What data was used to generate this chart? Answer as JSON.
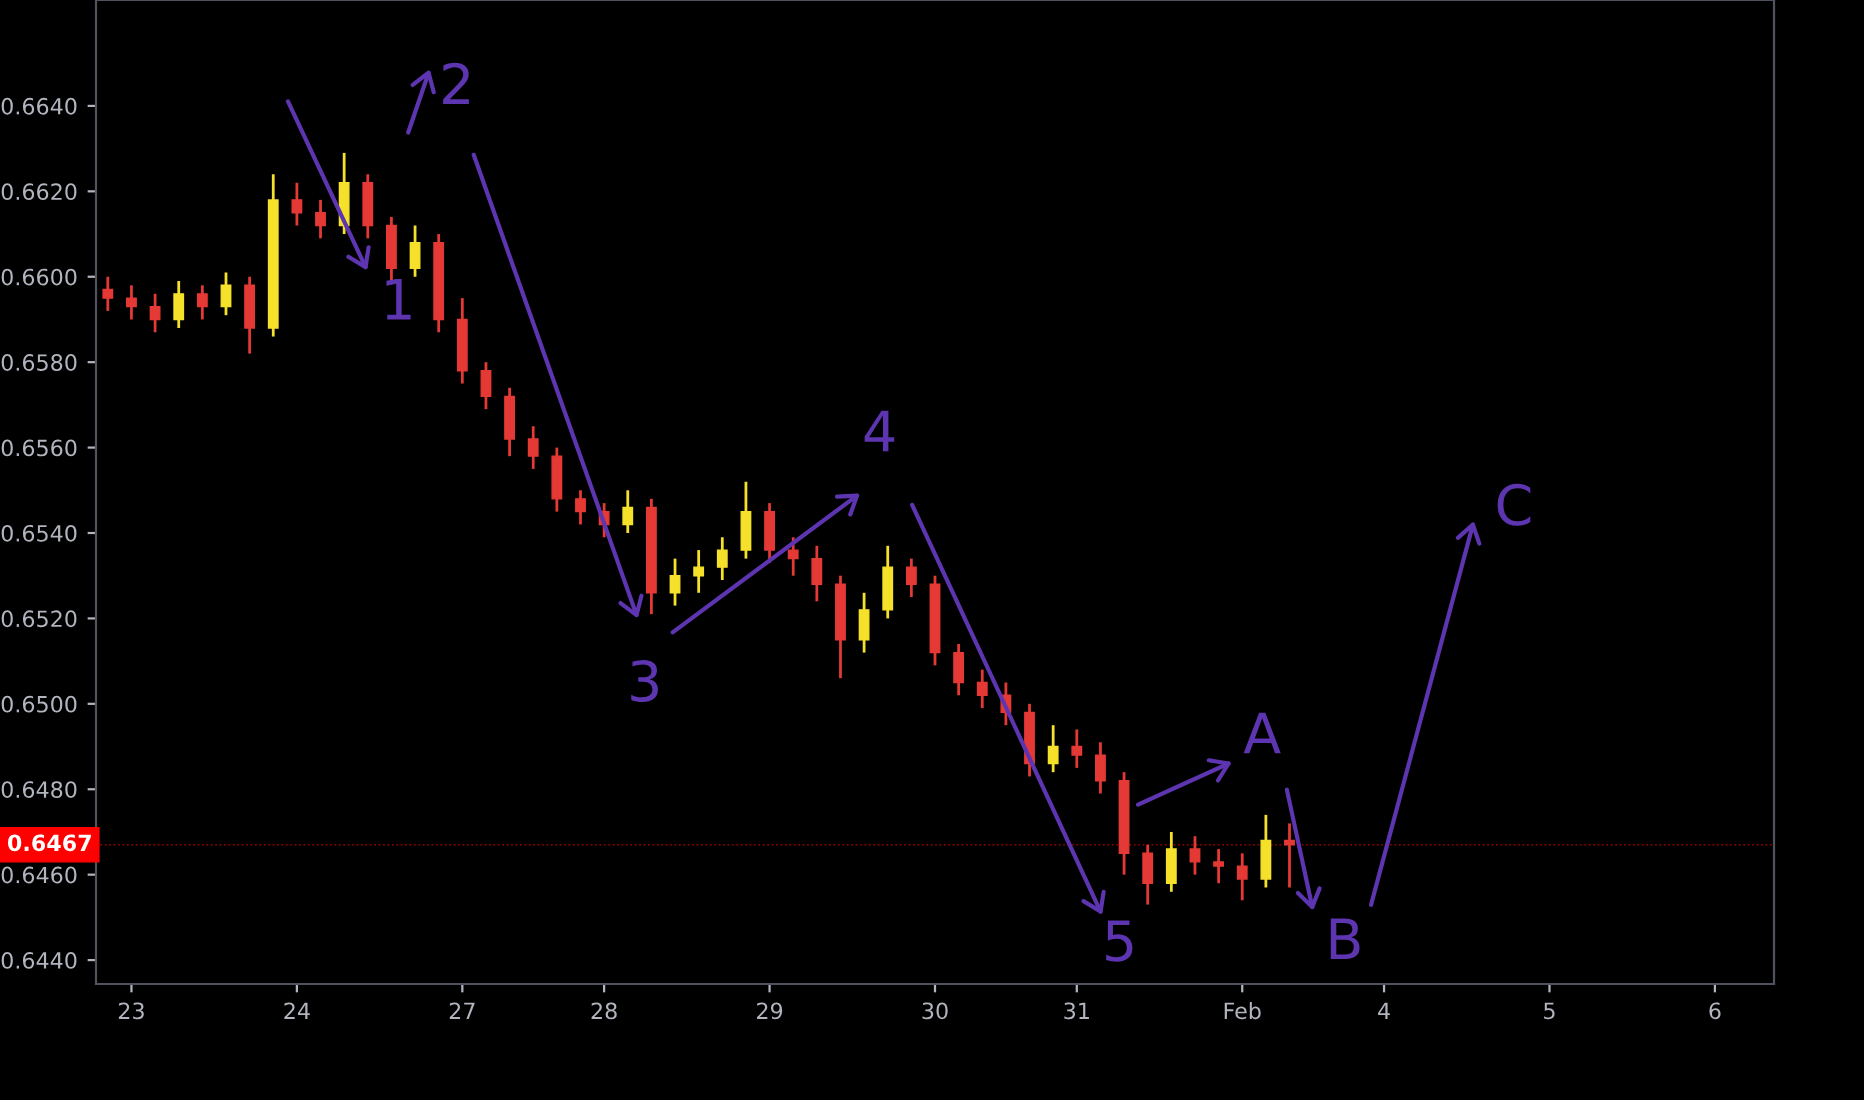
{
  "chart_data": {
    "type": "candlestick",
    "categories": [
      null,
      "23",
      null,
      null,
      null,
      null,
      null,
      null,
      "24",
      null,
      null,
      null,
      null,
      null,
      null,
      "27",
      null,
      null,
      null,
      null,
      null,
      "28",
      null,
      null,
      null,
      null,
      null,
      null,
      "29",
      null,
      null,
      null,
      null,
      null,
      null,
      "30",
      null,
      null,
      null,
      null,
      null,
      "31",
      null,
      null,
      null,
      null,
      null,
      null,
      "Feb",
      null,
      null,
      null,
      null,
      null,
      "4",
      null,
      null,
      null,
      null,
      null,
      null,
      "5",
      null,
      null,
      null,
      null,
      null,
      null,
      "6",
      null,
      null
    ],
    "ohlc": [
      [
        0.6597,
        0.66,
        0.6592,
        0.6595
      ],
      [
        0.6595,
        0.6598,
        0.659,
        0.6593
      ],
      [
        0.6593,
        0.6596,
        0.6587,
        0.659
      ],
      [
        0.659,
        0.6599,
        0.6588,
        0.6596
      ],
      [
        0.6596,
        0.6598,
        0.659,
        0.6593
      ],
      [
        0.6593,
        0.6601,
        0.6591,
        0.6598
      ],
      [
        0.6598,
        0.66,
        0.6582,
        0.6588
      ],
      [
        0.6588,
        0.6624,
        0.6586,
        0.6618
      ],
      [
        0.6618,
        0.6622,
        0.6612,
        0.6615
      ],
      [
        0.6615,
        0.6618,
        0.6609,
        0.6612
      ],
      [
        0.6612,
        0.6629,
        0.661,
        0.6622
      ],
      [
        0.6622,
        0.6624,
        0.6609,
        0.6612
      ],
      [
        0.6612,
        0.6614,
        0.6599,
        0.6602
      ],
      [
        0.6602,
        0.6612,
        0.66,
        0.6608
      ],
      [
        0.6608,
        0.661,
        0.6587,
        0.659
      ],
      [
        0.659,
        0.6595,
        0.6575,
        0.6578
      ],
      [
        0.6578,
        0.658,
        0.6569,
        0.6572
      ],
      [
        0.6572,
        0.6574,
        0.6558,
        0.6562
      ],
      [
        0.6562,
        0.6565,
        0.6555,
        0.6558
      ],
      [
        0.6558,
        0.656,
        0.6545,
        0.6548
      ],
      [
        0.6548,
        0.655,
        0.6542,
        0.6545
      ],
      [
        0.6545,
        0.6547,
        0.6539,
        0.6542
      ],
      [
        0.6542,
        0.655,
        0.654,
        0.6546
      ],
      [
        0.6546,
        0.6548,
        0.6521,
        0.6526
      ],
      [
        0.6526,
        0.6534,
        0.6523,
        0.653
      ],
      [
        0.653,
        0.6536,
        0.6526,
        0.6532
      ],
      [
        0.6532,
        0.6539,
        0.6529,
        0.6536
      ],
      [
        0.6536,
        0.6552,
        0.6534,
        0.6545
      ],
      [
        0.6545,
        0.6547,
        0.6533,
        0.6536
      ],
      [
        0.6536,
        0.6539,
        0.653,
        0.6534
      ],
      [
        0.6534,
        0.6537,
        0.6524,
        0.6528
      ],
      [
        0.6528,
        0.653,
        0.6506,
        0.6515
      ],
      [
        0.6515,
        0.6526,
        0.6512,
        0.6522
      ],
      [
        0.6522,
        0.6537,
        0.652,
        0.6532
      ],
      [
        0.6532,
        0.6534,
        0.6525,
        0.6528
      ],
      [
        0.6528,
        0.653,
        0.6509,
        0.6512
      ],
      [
        0.6512,
        0.6514,
        0.6502,
        0.6505
      ],
      [
        0.6505,
        0.6508,
        0.6499,
        0.6502
      ],
      [
        0.6502,
        0.6505,
        0.6495,
        0.6498
      ],
      [
        0.6498,
        0.65,
        0.6483,
        0.6486
      ],
      [
        0.6486,
        0.6495,
        0.6484,
        0.649
      ],
      [
        0.649,
        0.6494,
        0.6485,
        0.6488
      ],
      [
        0.6488,
        0.6491,
        0.6479,
        0.6482
      ],
      [
        0.6482,
        0.6484,
        0.646,
        0.6465
      ],
      [
        0.6465,
        0.6467,
        0.6453,
        0.6458
      ],
      [
        0.6458,
        0.647,
        0.6456,
        0.6466
      ],
      [
        0.6466,
        0.6469,
        0.646,
        0.6463
      ],
      [
        0.6463,
        0.6466,
        0.6458,
        0.6462
      ],
      [
        0.6462,
        0.6465,
        0.6454,
        0.6459
      ],
      [
        0.6459,
        0.6474,
        0.6457,
        0.6468
      ],
      [
        0.6468,
        0.6472,
        0.6457,
        0.6467
      ],
      null,
      null,
      null,
      null,
      null,
      null,
      null,
      null,
      null,
      null,
      null,
      null,
      null,
      null,
      null,
      null,
      null,
      null,
      null,
      null
    ],
    "colors": [
      "#e53935",
      "#e53935",
      "#e53935",
      "#f5e12a",
      "#e53935",
      "#f5e12a",
      "#e53935",
      "#f5e12a",
      "#e53935",
      "#e53935",
      "#f5e12a",
      "#e53935",
      "#e53935",
      "#f5e12a",
      "#e53935",
      "#e53935",
      "#e53935",
      "#e53935",
      "#e53935",
      "#e53935",
      "#e53935",
      "#e53935",
      "#f5e12a",
      "#e53935",
      "#f5e12a",
      "#f5e12a",
      "#f5e12a",
      "#f5e12a",
      "#e53935",
      "#e53935",
      "#e53935",
      "#e53935",
      "#f5e12a",
      "#f5e12a",
      "#e53935",
      "#e53935",
      "#e53935",
      "#e53935",
      "#e53935",
      "#e53935",
      "#f5e12a",
      "#e53935",
      "#e53935",
      "#e53935",
      "#e53935",
      "#f5e12a",
      "#e53935",
      "#e53935",
      "#e53935",
      "#f5e12a",
      "#e53935",
      null,
      null,
      null,
      null,
      null,
      null,
      null,
      null,
      null,
      null,
      null,
      null,
      null,
      null,
      null,
      null,
      null,
      null,
      null,
      null
    ],
    "ylim": [
      0.64344,
      0.66648
    ],
    "yticks": [
      {
        "value": 0.644,
        "label": "0.6440"
      },
      {
        "value": 0.646,
        "label": "0.6460"
      },
      {
        "value": 0.648,
        "label": "0.6480"
      },
      {
        "value": 0.65,
        "label": "0.6500"
      },
      {
        "value": 0.652,
        "label": "0.6520"
      },
      {
        "value": 0.654,
        "label": "0.6540"
      },
      {
        "value": 0.656,
        "label": "0.6560"
      },
      {
        "value": 0.658,
        "label": "0.6580"
      },
      {
        "value": 0.66,
        "label": "0.6600"
      },
      {
        "value": 0.662,
        "label": "0.6620"
      },
      {
        "value": 0.664,
        "label": "0.6640"
      }
    ],
    "ref_lines": [
      {
        "axis": "y",
        "value": 0.6467,
        "label": "0.6467",
        "color": "#ff0000",
        "line_style": "dotted"
      }
    ],
    "annotations": [
      "1",
      "2",
      "3",
      "4",
      "5",
      "A",
      "B",
      "C"
    ]
  }
}
